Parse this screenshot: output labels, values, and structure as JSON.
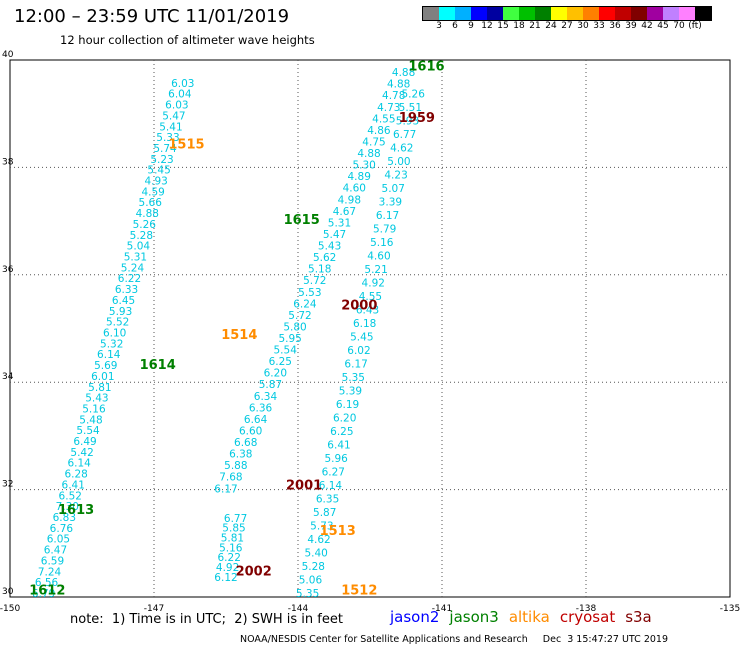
{
  "header": {
    "title": "12:00 – 23:59 UTC 11/01/2019",
    "subtitle": "12 hour collection of altimeter wave heights"
  },
  "color_scale": {
    "labels": [
      "3",
      "6",
      "9",
      "12",
      "15",
      "18",
      "21",
      "24",
      "27",
      "30",
      "33",
      "36",
      "39",
      "42",
      "45",
      "70",
      "(ft)"
    ],
    "colors": [
      "#808080",
      "#00ffff",
      "#00b0ff",
      "#0000ff",
      "#0000a0",
      "#40ff40",
      "#00c000",
      "#008000",
      "#ffff00",
      "#ffc000",
      "#ff8000",
      "#ff0000",
      "#c00000",
      "#800000",
      "#a000a0",
      "#c080ff",
      "#ff80ff",
      "#000000"
    ]
  },
  "footer": {
    "note": "note:  1) Time is in UTC;  2) SWH is in feet",
    "credit": "NOAA/NESDIS Center for Satellite Applications and Research     Dec  3 15:47:27 UTC 2019"
  },
  "legend": [
    {
      "name": "jason2",
      "color": "#0000ff"
    },
    {
      "name": "jason3",
      "color": "#008000"
    },
    {
      "name": "altika",
      "color": "#ff8c00"
    },
    {
      "name": "cryosat",
      "color": "#c00000"
    },
    {
      "name": "s3a",
      "color": "#800000"
    }
  ],
  "chart_data": {
    "type": "scatter",
    "title": "12:00 – 23:59 UTC 11/01/2019",
    "subtitle": "12 hour collection of altimeter wave heights",
    "xlim": [
      -150,
      -135
    ],
    "ylim": [
      30,
      40
    ],
    "x_ticks": [
      "-150",
      "-147",
      "-144",
      "-141",
      "-138",
      "-135"
    ],
    "y_ticks": [
      "30",
      "32",
      "34",
      "36",
      "38",
      "40"
    ],
    "grid": true,
    "value_color": "#00c8e0",
    "tracks": [
      {
        "name": "jason3 descending",
        "values": [
          "6.03",
          "6.04",
          "6.03",
          "5.47",
          "5.41",
          "5.33",
          "5.74",
          "5.23",
          "5.45",
          "4.93",
          "4.59",
          "5.66",
          "4.88",
          "5.26",
          "5.28",
          "5.04",
          "5.31",
          "5.24",
          "6.22",
          "6.33",
          "6.45",
          "5.93",
          "5.52",
          "6.10",
          "5.32",
          "6.14",
          "5.69",
          "6.01",
          "5.81",
          "5.43",
          "5.16",
          "5.48",
          "5.54",
          "6.49",
          "5.42",
          "6.14",
          "6.28",
          "6.41",
          "6.52",
          "7.30",
          "6.83",
          "6.76",
          "6.05",
          "6.47",
          "6.59",
          "7.24",
          "6.56",
          "6.79"
        ]
      },
      {
        "name": "jason3 ascending",
        "values": [
          "4.88",
          "4.88",
          "4.78",
          "4.73",
          "4.55",
          "4.86",
          "4.75",
          "4.88",
          "5.30",
          "4.89",
          "4.60",
          "4.98",
          "4.67",
          "5.31",
          "5.47",
          "5.43",
          "5.62",
          "5.18",
          "5.72",
          "5.53",
          "6.24",
          "5.72",
          "5.80",
          "5.95",
          "5.54",
          "6.25",
          "6.20",
          "5.87",
          "6.34",
          "6.36",
          "6.64",
          "6.60",
          "6.68",
          "6.38",
          "5.88",
          "7.68",
          "6.17"
        ]
      },
      {
        "name": "jason3 ascending east",
        "values": [
          "5.26",
          "5.51",
          "5.93",
          "6.77",
          "4.62",
          "5.00",
          "4.23",
          "5.07",
          "3.39",
          "6.17",
          "5.79",
          "5.16",
          "4.60",
          "5.21",
          "4.92",
          "4.55",
          "6.43",
          "6.18",
          "5.45",
          "6.02",
          "6.17",
          "5.35",
          "5.39",
          "6.19",
          "6.20",
          "6.25",
          "6.41",
          "5.96",
          "6.27",
          "6.14",
          "6.35",
          "5.87",
          "5.73",
          "4.62",
          "5.40",
          "5.28",
          "5.06",
          "5.35"
        ]
      },
      {
        "name": "jason3 lower",
        "values": [
          "6.77",
          "5.85",
          "5.81",
          "5.16",
          "6.22",
          "4.92",
          "6.12"
        ]
      }
    ],
    "pass_labels": [
      {
        "text": "1616",
        "lon": -141.7,
        "lat": 39.8,
        "color": "#008000"
      },
      {
        "text": "1959",
        "lon": -141.9,
        "lat": 38.85,
        "color": "#800000"
      },
      {
        "text": "1515",
        "lon": -146.7,
        "lat": 38.35,
        "color": "#ff8c00"
      },
      {
        "text": "1615",
        "lon": -144.3,
        "lat": 36.95,
        "color": "#008000"
      },
      {
        "text": "2000",
        "lon": -143.1,
        "lat": 35.35,
        "color": "#800000"
      },
      {
        "text": "1514",
        "lon": -145.6,
        "lat": 34.8,
        "color": "#ff8c00"
      },
      {
        "text": "1614",
        "lon": -147.3,
        "lat": 34.25,
        "color": "#008000"
      },
      {
        "text": "2001",
        "lon": -144.25,
        "lat": 32.0,
        "color": "#800000"
      },
      {
        "text": "1613",
        "lon": -149.0,
        "lat": 31.55,
        "color": "#008000"
      },
      {
        "text": "1513",
        "lon": -143.55,
        "lat": 31.15,
        "color": "#ff8c00"
      },
      {
        "text": "2002",
        "lon": -145.3,
        "lat": 30.4,
        "color": "#800000"
      },
      {
        "text": "1612",
        "lon": -149.6,
        "lat": 30.05,
        "color": "#008000"
      },
      {
        "text": "1512",
        "lon": -143.1,
        "lat": 30.05,
        "color": "#ff8c00"
      }
    ]
  }
}
